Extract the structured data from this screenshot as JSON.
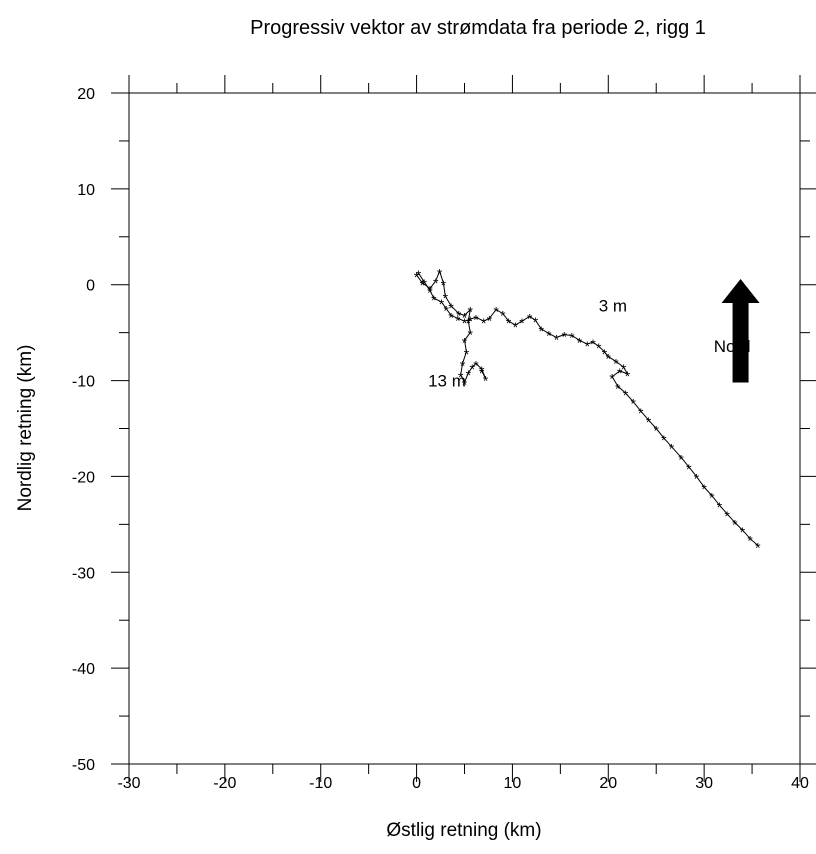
{
  "chart_data": {
    "type": "line",
    "title": "Progressiv vektor av strømdata fra periode 2, rigg 1",
    "xlabel": "Østlig retning (km)",
    "ylabel": "Nordlig retning (km)",
    "xlim": [
      -30,
      40
    ],
    "ylim": [
      -50,
      20
    ],
    "xticks": [
      -30,
      -20,
      -10,
      0,
      10,
      20,
      30,
      40
    ],
    "yticks": [
      20,
      10,
      0,
      -10,
      -20,
      -30,
      -40,
      -50
    ],
    "grid": false,
    "series": [
      {
        "name": "3 m",
        "color": "#000000",
        "marker": "*",
        "points": [
          [
            0.2,
            1.2
          ],
          [
            0.8,
            0.3
          ],
          [
            1.4,
            -0.6
          ],
          [
            1.8,
            -1.4
          ],
          [
            2.6,
            -1.8
          ],
          [
            3.1,
            -2.5
          ],
          [
            3.6,
            -3.2
          ],
          [
            4.3,
            -3.5
          ],
          [
            5.0,
            -3.8
          ],
          [
            5.6,
            -3.6
          ],
          [
            6.2,
            -3.4
          ],
          [
            7.0,
            -3.8
          ],
          [
            7.6,
            -3.5
          ],
          [
            8.3,
            -2.6
          ],
          [
            9.0,
            -3.0
          ],
          [
            9.6,
            -3.8
          ],
          [
            10.3,
            -4.2
          ],
          [
            11.0,
            -3.8
          ],
          [
            11.8,
            -3.3
          ],
          [
            12.4,
            -3.7
          ],
          [
            13.0,
            -4.6
          ],
          [
            13.8,
            -5.1
          ],
          [
            14.6,
            -5.5
          ],
          [
            15.4,
            -5.2
          ],
          [
            16.2,
            -5.3
          ],
          [
            17.0,
            -5.8
          ],
          [
            17.8,
            -6.2
          ],
          [
            18.4,
            -6.0
          ],
          [
            19.0,
            -6.4
          ],
          [
            19.6,
            -7.0
          ],
          [
            20.0,
            -7.5
          ],
          [
            20.8,
            -8.0
          ],
          [
            21.6,
            -8.6
          ],
          [
            22.0,
            -9.3
          ],
          [
            21.2,
            -9.0
          ],
          [
            20.4,
            -9.6
          ],
          [
            21.0,
            -10.6
          ],
          [
            21.8,
            -11.3
          ],
          [
            22.6,
            -12.2
          ],
          [
            23.4,
            -13.2
          ],
          [
            24.2,
            -14.1
          ],
          [
            25.0,
            -15.0
          ],
          [
            25.8,
            -16.0
          ],
          [
            26.6,
            -16.9
          ],
          [
            27.6,
            -18.0
          ],
          [
            28.4,
            -19.0
          ],
          [
            29.2,
            -20.0
          ],
          [
            30.0,
            -21.1
          ],
          [
            30.8,
            -22.0
          ],
          [
            31.6,
            -23.0
          ],
          [
            32.4,
            -23.9
          ],
          [
            33.2,
            -24.8
          ],
          [
            34.0,
            -25.6
          ],
          [
            34.8,
            -26.5
          ],
          [
            35.6,
            -27.2
          ]
        ]
      },
      {
        "name": "13 m",
        "color": "#000000",
        "marker": "*",
        "points": [
          [
            0.0,
            1.0
          ],
          [
            0.6,
            0.2
          ],
          [
            1.4,
            -0.4
          ],
          [
            2.0,
            0.4
          ],
          [
            2.4,
            1.4
          ],
          [
            2.8,
            0.2
          ],
          [
            3.0,
            -1.2
          ],
          [
            3.6,
            -2.2
          ],
          [
            4.4,
            -3.0
          ],
          [
            5.0,
            -3.2
          ],
          [
            5.6,
            -2.6
          ],
          [
            5.4,
            -3.8
          ],
          [
            5.6,
            -5.0
          ],
          [
            5.0,
            -5.8
          ],
          [
            5.2,
            -7.0
          ],
          [
            4.8,
            -8.2
          ],
          [
            4.6,
            -9.4
          ],
          [
            5.0,
            -10.2
          ],
          [
            5.4,
            -9.2
          ],
          [
            5.8,
            -8.6
          ],
          [
            6.2,
            -8.2
          ],
          [
            6.8,
            -8.8
          ],
          [
            7.2,
            -9.8
          ],
          [
            6.8,
            -9.0
          ]
        ]
      }
    ],
    "annotations": [
      {
        "text": "3 m",
        "x": 19.0,
        "y": -2.8
      },
      {
        "text": "13 m",
        "x": 1.2,
        "y": -10.6
      },
      {
        "text": "Nord",
        "x": 31.0,
        "y": -7.0
      }
    ],
    "north_arrow": {
      "label": "Nord",
      "x": 33.8,
      "y_from": -10.2,
      "y_to": 0.6
    }
  }
}
